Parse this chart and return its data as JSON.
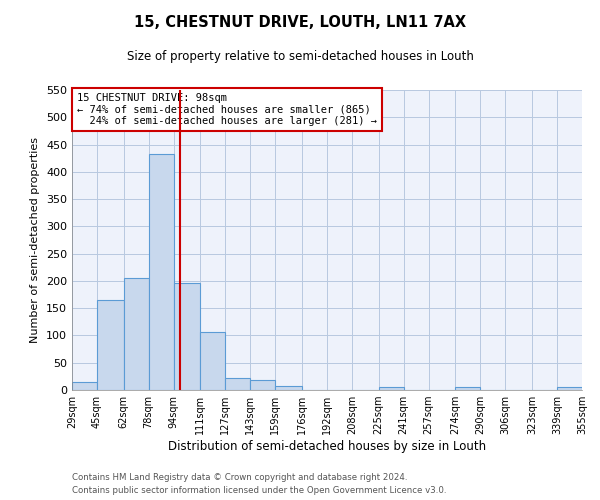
{
  "title": "15, CHESTNUT DRIVE, LOUTH, LN11 7AX",
  "subtitle": "Size of property relative to semi-detached houses in Louth",
  "xlabel": "Distribution of semi-detached houses by size in Louth",
  "ylabel": "Number of semi-detached properties",
  "bin_labels": [
    "29sqm",
    "45sqm",
    "62sqm",
    "78sqm",
    "94sqm",
    "111sqm",
    "127sqm",
    "143sqm",
    "159sqm",
    "176sqm",
    "192sqm",
    "208sqm",
    "225sqm",
    "241sqm",
    "257sqm",
    "274sqm",
    "290sqm",
    "306sqm",
    "323sqm",
    "339sqm",
    "355sqm"
  ],
  "bin_edges": [
    29,
    45,
    62,
    78,
    94,
    111,
    127,
    143,
    159,
    176,
    192,
    208,
    225,
    241,
    257,
    274,
    290,
    306,
    323,
    339,
    355
  ],
  "bar_heights": [
    15,
    165,
    205,
    432,
    197,
    107,
    22,
    19,
    8,
    0,
    0,
    0,
    6,
    0,
    0,
    5,
    0,
    0,
    0,
    5
  ],
  "property_value": 98,
  "property_label": "15 CHESTNUT DRIVE: 98sqm",
  "pct_smaller": 74,
  "n_smaller": 865,
  "pct_larger": 24,
  "n_larger": 281,
  "bar_color": "#c8d8ed",
  "bar_edge_color": "#5b9bd5",
  "vline_color": "#cc0000",
  "grid_color": "#b8c8e0",
  "background_color": "#ffffff",
  "plot_bg_color": "#eef2fb",
  "ylim": [
    0,
    550
  ],
  "yticks": [
    0,
    50,
    100,
    150,
    200,
    250,
    300,
    350,
    400,
    450,
    500,
    550
  ],
  "annotation_box_color": "#ffffff",
  "annotation_box_edge": "#cc0000",
  "footer1": "Contains HM Land Registry data © Crown copyright and database right 2024.",
  "footer2": "Contains public sector information licensed under the Open Government Licence v3.0."
}
